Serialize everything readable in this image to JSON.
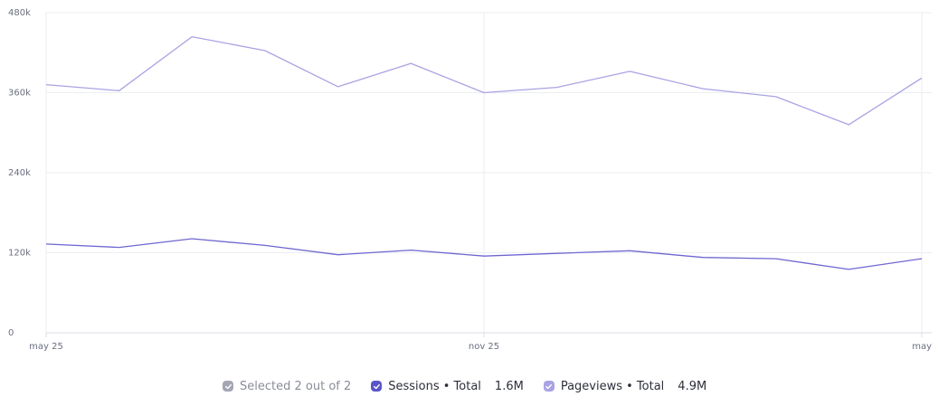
{
  "chart_data": {
    "type": "line",
    "x": [
      "may 25",
      "",
      "",
      "",
      "",
      "",
      "nov 25",
      "",
      "",
      "",
      "",
      "",
      "may"
    ],
    "xticks": [
      "may 25",
      "nov 25",
      "may"
    ],
    "yticks": [
      "0",
      "120k",
      "240k",
      "360k",
      "480k"
    ],
    "ylim": [
      0,
      480000
    ],
    "grid": true,
    "series": [
      {
        "name": "Pageviews • Total",
        "color": "#a9a3e4",
        "values": [
          372000,
          363000,
          444000,
          423000,
          369000,
          404000,
          360000,
          368000,
          392000,
          366000,
          354000,
          312000,
          382000
        ]
      },
      {
        "name": "Sessions • Total",
        "color": "#6f67d0",
        "values": [
          133000,
          128000,
          141000,
          131000,
          117000,
          124000,
          115000,
          119000,
          123000,
          113000,
          111000,
          95000,
          111000
        ]
      }
    ]
  },
  "legend": {
    "selected": {
      "label": "Selected 2 out of 2",
      "color": "#a4a6b3"
    },
    "sessions": {
      "label": "Sessions • Total",
      "total": "1.6M",
      "color": "#5b55c9"
    },
    "pageviews": {
      "label": "Pageviews • Total",
      "total": "4.9M",
      "color": "#a9a3e4"
    }
  }
}
